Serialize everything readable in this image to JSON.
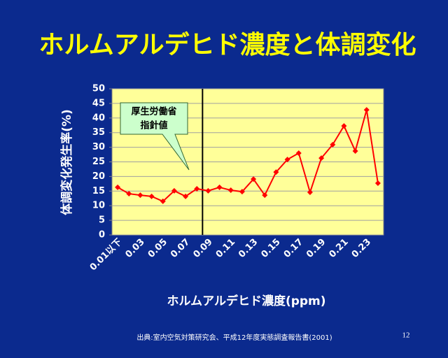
{
  "chart_data": {
    "type": "line",
    "title": "ホルムアルデヒド濃度と体調変化",
    "x_label": "ホルムアルデヒド濃度(ppm)",
    "y_label": "体調変化発生率(%)",
    "categories": [
      "0.01以下",
      null,
      "0.03",
      null,
      "0.05",
      null,
      "0.07",
      null,
      "0.09",
      null,
      "0.11",
      null,
      "0.13",
      null,
      "0.15",
      null,
      "0.17",
      null,
      "0.19",
      null,
      "0.21",
      null,
      "0.23",
      null
    ],
    "series": [
      {
        "name": "体調変化発生率",
        "color": "#ff0000",
        "values": [
          16.3,
          14.1,
          13.6,
          13.2,
          11.5,
          15.1,
          13.2,
          15.8,
          15.1,
          16.3,
          15.3,
          14.8,
          19.1,
          13.6,
          21.5,
          25.8,
          28.0,
          14.6,
          26.3,
          30.9,
          37.3,
          28.7,
          42.8,
          17.7
        ]
      }
    ],
    "ylim": [
      0,
      50
    ],
    "yticks": [
      0,
      5,
      10,
      15,
      20,
      25,
      30,
      35,
      40,
      45,
      50
    ],
    "grid": true,
    "annotation": [
      "厚生労働省",
      "指針値"
    ],
    "source": "出典:室内空気対策研究会、平成12年度実態調査報告書(2001)",
    "page_number": "12"
  }
}
